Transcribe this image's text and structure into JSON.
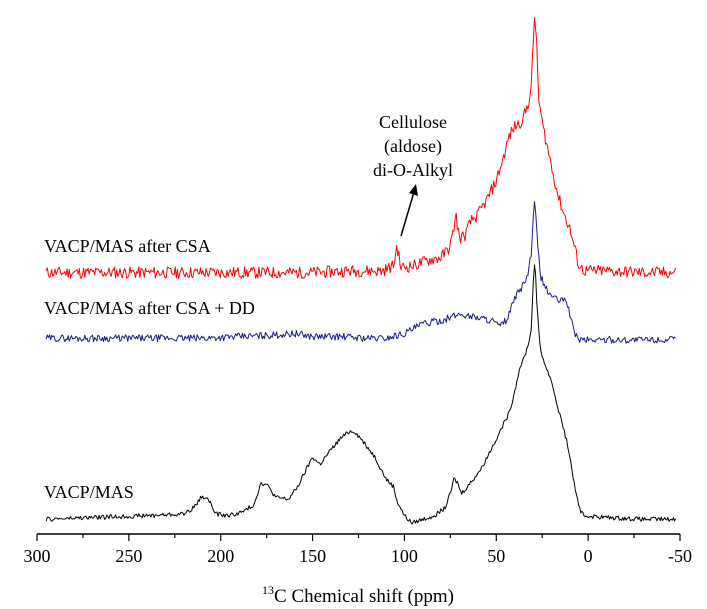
{
  "chart_data": {
    "type": "line",
    "xlabel_sup": "13",
    "xlabel": "C Chemical shift (ppm)",
    "ylabel": "",
    "xlim": [
      300,
      -50
    ],
    "x_reversed": true,
    "y_axis_visible": false,
    "grid": false,
    "xticks": [
      300,
      250,
      200,
      150,
      100,
      50,
      0,
      -50
    ],
    "series": [
      {
        "name": "VACP/MAS after CSA",
        "color": "#ff0000",
        "noise": 0.035,
        "points": [
          [
            295,
            0.02
          ],
          [
            250,
            0.02
          ],
          [
            200,
            0.02
          ],
          [
            150,
            0.02
          ],
          [
            130,
            0.03
          ],
          [
            112,
            0.03
          ],
          [
            106,
            0.06
          ],
          [
            104,
            0.18
          ],
          [
            102,
            0.05
          ],
          [
            95,
            0.06
          ],
          [
            88,
            0.09
          ],
          [
            80,
            0.11
          ],
          [
            76,
            0.16
          ],
          [
            74,
            0.22
          ],
          [
            72,
            0.36
          ],
          [
            70,
            0.22
          ],
          [
            67,
            0.24
          ],
          [
            64,
            0.32
          ],
          [
            60,
            0.36
          ],
          [
            55,
            0.45
          ],
          [
            50,
            0.56
          ],
          [
            46,
            0.7
          ],
          [
            43,
            0.82
          ],
          [
            40,
            0.88
          ],
          [
            37,
            0.9
          ],
          [
            35,
            0.94
          ],
          [
            33,
            1.0
          ],
          [
            31,
            1.1
          ],
          [
            30,
            1.35
          ],
          [
            29,
            1.56
          ],
          [
            28,
            1.35
          ],
          [
            27,
            1.05
          ],
          [
            25,
            0.9
          ],
          [
            22,
            0.75
          ],
          [
            19,
            0.6
          ],
          [
            16,
            0.46
          ],
          [
            13,
            0.36
          ],
          [
            10,
            0.28
          ],
          [
            7,
            0.15
          ],
          [
            5,
            0.06
          ],
          [
            2,
            0.03
          ],
          [
            -10,
            0.03
          ],
          [
            -30,
            0.02
          ],
          [
            -48,
            0.02
          ]
        ]
      },
      {
        "name": "VACP/MAS after CSA + DD",
        "color": "#1a1a8c",
        "noise": 0.022,
        "points": [
          [
            295,
            0.03
          ],
          [
            270,
            0.03
          ],
          [
            240,
            0.03
          ],
          [
            210,
            0.03
          ],
          [
            190,
            0.04
          ],
          [
            170,
            0.05
          ],
          [
            160,
            0.06
          ],
          [
            150,
            0.04
          ],
          [
            135,
            0.04
          ],
          [
            120,
            0.03
          ],
          [
            110,
            0.03
          ],
          [
            100,
            0.06
          ],
          [
            90,
            0.12
          ],
          [
            80,
            0.14
          ],
          [
            70,
            0.18
          ],
          [
            60,
            0.16
          ],
          [
            52,
            0.14
          ],
          [
            48,
            0.1
          ],
          [
            44,
            0.15
          ],
          [
            40,
            0.28
          ],
          [
            36,
            0.35
          ],
          [
            33,
            0.42
          ],
          [
            31,
            0.55
          ],
          [
            30,
            0.75
          ],
          [
            29,
            0.9
          ],
          [
            28,
            0.7
          ],
          [
            26,
            0.42
          ],
          [
            22,
            0.32
          ],
          [
            18,
            0.28
          ],
          [
            15,
            0.26
          ],
          [
            12,
            0.28
          ],
          [
            10,
            0.18
          ],
          [
            8,
            0.08
          ],
          [
            5,
            0.02
          ],
          [
            0,
            0.02
          ],
          [
            -20,
            0.02
          ],
          [
            -48,
            0.02
          ]
        ]
      },
      {
        "name": "VACP/MAS",
        "color": "#000000",
        "noise": 0.012,
        "points": [
          [
            295,
            0.02
          ],
          [
            270,
            0.03
          ],
          [
            240,
            0.04
          ],
          [
            220,
            0.05
          ],
          [
            214,
            0.09
          ],
          [
            210,
            0.15
          ],
          [
            206,
            0.12
          ],
          [
            203,
            0.05
          ],
          [
            196,
            0.04
          ],
          [
            188,
            0.06
          ],
          [
            182,
            0.1
          ],
          [
            178,
            0.22
          ],
          [
            175,
            0.21
          ],
          [
            170,
            0.14
          ],
          [
            163,
            0.13
          ],
          [
            158,
            0.2
          ],
          [
            154,
            0.28
          ],
          [
            150,
            0.36
          ],
          [
            146,
            0.32
          ],
          [
            140,
            0.4
          ],
          [
            135,
            0.46
          ],
          [
            130,
            0.5
          ],
          [
            127,
            0.5
          ],
          [
            122,
            0.44
          ],
          [
            116,
            0.36
          ],
          [
            110,
            0.24
          ],
          [
            106,
            0.2
          ],
          [
            104,
            0.12
          ],
          [
            100,
            0.04
          ],
          [
            96,
            0.0
          ],
          [
            90,
            0.02
          ],
          [
            84,
            0.04
          ],
          [
            78,
            0.08
          ],
          [
            75,
            0.16
          ],
          [
            73,
            0.24
          ],
          [
            71,
            0.22
          ],
          [
            69,
            0.16
          ],
          [
            64,
            0.22
          ],
          [
            58,
            0.3
          ],
          [
            52,
            0.42
          ],
          [
            47,
            0.52
          ],
          [
            43,
            0.6
          ],
          [
            40,
            0.72
          ],
          [
            37,
            0.86
          ],
          [
            35,
            0.9
          ],
          [
            33,
            0.96
          ],
          [
            31,
            1.05
          ],
          [
            30,
            1.3
          ],
          [
            29,
            1.45
          ],
          [
            28,
            1.2
          ],
          [
            26,
            0.95
          ],
          [
            23,
            0.85
          ],
          [
            20,
            0.78
          ],
          [
            17,
            0.65
          ],
          [
            14,
            0.54
          ],
          [
            11,
            0.42
          ],
          [
            8,
            0.24
          ],
          [
            5,
            0.08
          ],
          [
            2,
            0.04
          ],
          [
            -10,
            0.03
          ],
          [
            -30,
            0.02
          ],
          [
            -48,
            0.02
          ]
        ]
      }
    ],
    "annotation": {
      "lines": [
        "Cellulose",
        "(aldose)",
        "di-O-Alkyl"
      ],
      "arrow_target_ppm": 104
    }
  }
}
